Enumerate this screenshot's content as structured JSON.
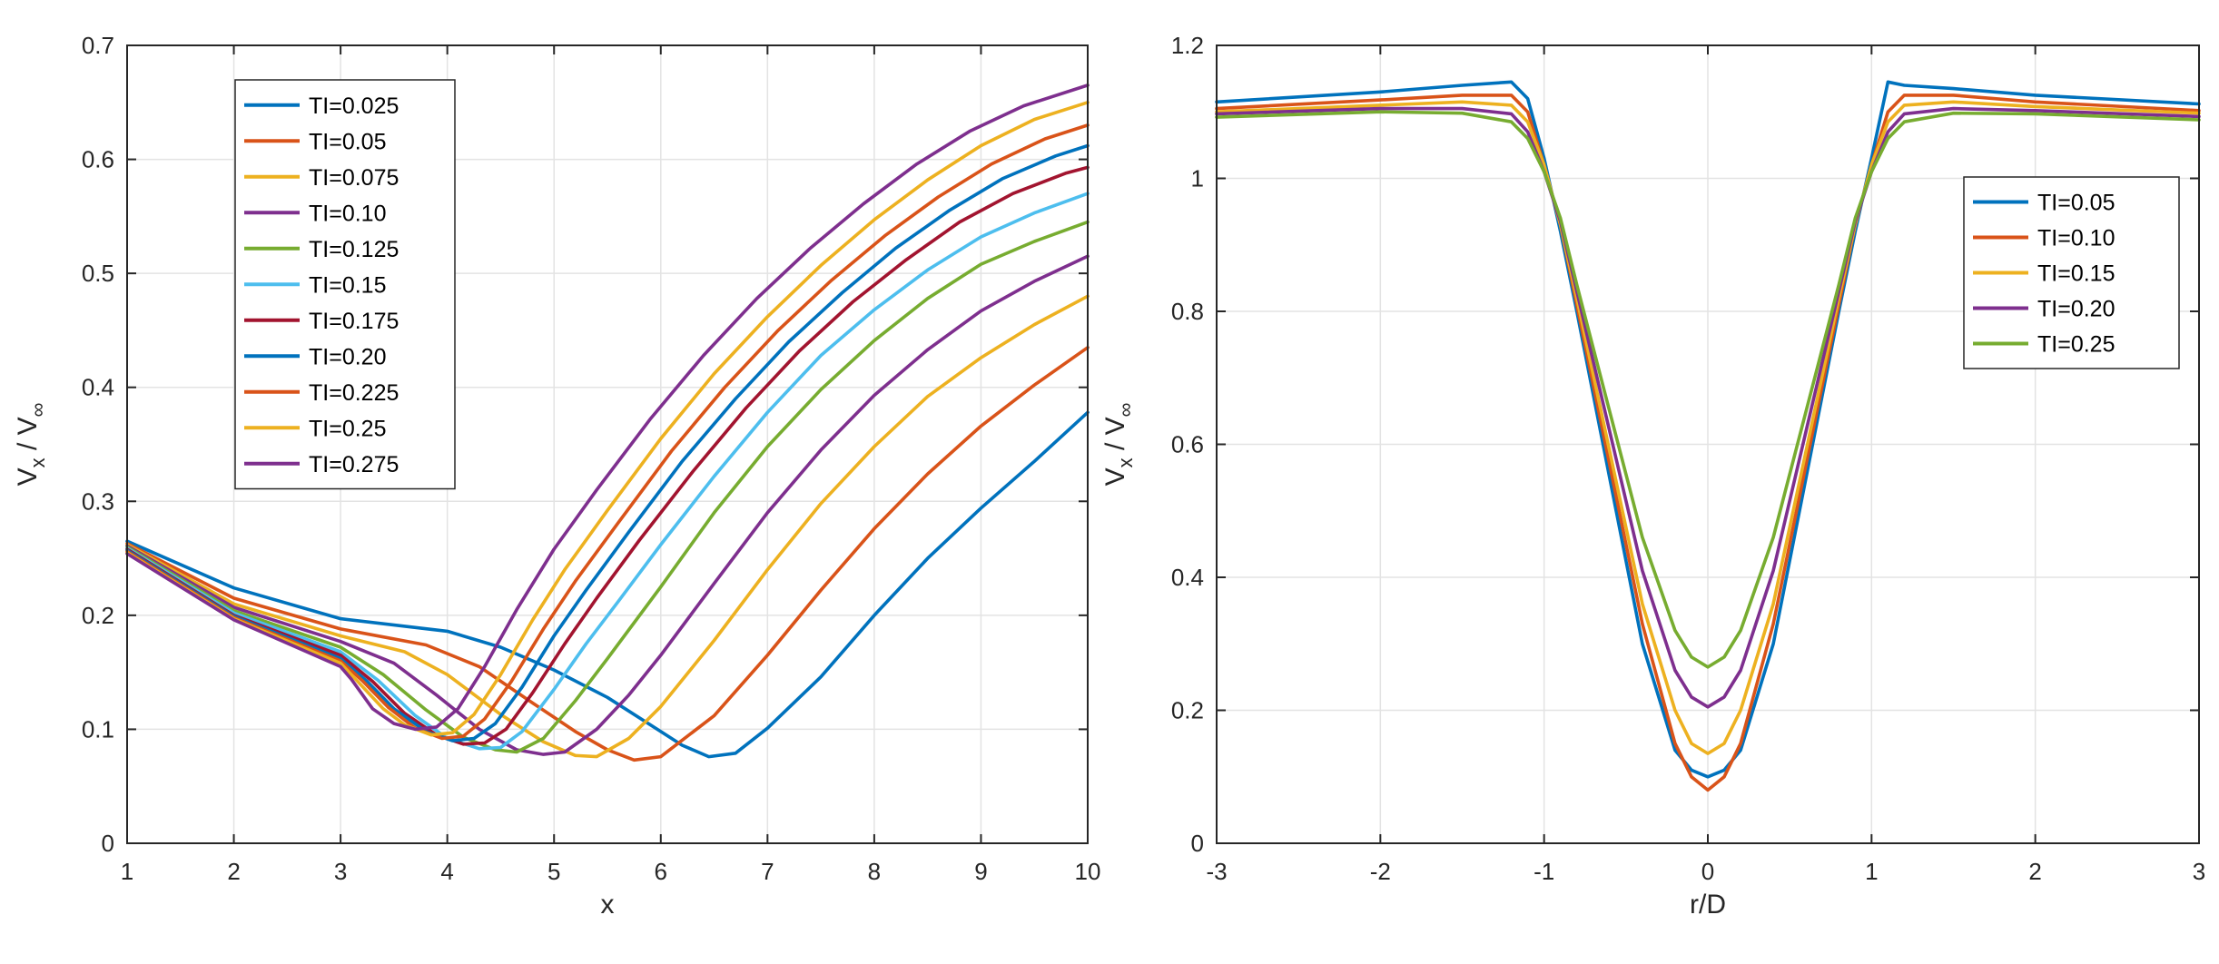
{
  "chart_data": [
    {
      "type": "line",
      "xlabel": "x",
      "ylabel": "V_x / V_∞",
      "ylabel_parts": [
        "V",
        "x",
        " / V",
        "∞"
      ],
      "xlim": [
        1,
        10
      ],
      "ylim": [
        0,
        0.7
      ],
      "xticks": [
        1,
        2,
        3,
        4,
        5,
        6,
        7,
        8,
        9,
        10
      ],
      "yticks": [
        0,
        0.1,
        0.2,
        0.3,
        0.4,
        0.5,
        0.6,
        0.7
      ],
      "xtick_labels": [
        "1",
        "2",
        "3",
        "4",
        "5",
        "6",
        "7",
        "8",
        "9",
        "10"
      ],
      "ytick_labels": [
        "0",
        "0.1",
        "0.2",
        "0.3",
        "0.4",
        "0.5",
        "0.6",
        "0.7"
      ],
      "grid": true,
      "legend_position": "top-left",
      "series": [
        {
          "name": "TI=0.025",
          "color": "#0072BD",
          "x": [
            1,
            2,
            3,
            4,
            4.5,
            5,
            5.5,
            6,
            6.2,
            6.45,
            6.7,
            7,
            7.5,
            8,
            8.5,
            9,
            9.5,
            10
          ],
          "y": [
            0.265,
            0.224,
            0.197,
            0.186,
            0.172,
            0.152,
            0.128,
            0.098,
            0.086,
            0.076,
            0.079,
            0.101,
            0.146,
            0.2,
            0.25,
            0.294,
            0.335,
            0.378
          ]
        },
        {
          "name": "TI=0.05",
          "color": "#D95319",
          "x": [
            1,
            2,
            3,
            3.8,
            4.3,
            4.8,
            5.2,
            5.5,
            5.75,
            6,
            6.5,
            7,
            7.5,
            8,
            8.5,
            9,
            9.5,
            10
          ],
          "y": [
            0.263,
            0.215,
            0.188,
            0.174,
            0.155,
            0.123,
            0.098,
            0.082,
            0.073,
            0.076,
            0.112,
            0.165,
            0.222,
            0.276,
            0.324,
            0.366,
            0.402,
            0.435
          ]
        },
        {
          "name": "TI=0.075",
          "color": "#EDB120",
          "x": [
            1,
            2,
            3,
            3.6,
            4,
            4.5,
            4.9,
            5.2,
            5.4,
            5.7,
            6,
            6.5,
            7,
            7.5,
            8,
            8.5,
            9,
            9.5,
            10
          ],
          "y": [
            0.262,
            0.21,
            0.182,
            0.168,
            0.148,
            0.113,
            0.089,
            0.077,
            0.076,
            0.092,
            0.12,
            0.178,
            0.24,
            0.298,
            0.348,
            0.392,
            0.426,
            0.455,
            0.48
          ]
        },
        {
          "name": "TI=0.10",
          "color": "#7E2F8E",
          "x": [
            1,
            2,
            3,
            3.5,
            3.9,
            4.3,
            4.65,
            4.9,
            5.1,
            5.4,
            5.7,
            6,
            6.5,
            7,
            7.5,
            8,
            8.5,
            9,
            9.5,
            10
          ],
          "y": [
            0.261,
            0.207,
            0.177,
            0.158,
            0.13,
            0.1,
            0.082,
            0.078,
            0.08,
            0.1,
            0.13,
            0.165,
            0.228,
            0.29,
            0.345,
            0.393,
            0.433,
            0.467,
            0.493,
            0.515
          ]
        },
        {
          "name": "TI=0.125",
          "color": "#77AC30",
          "x": [
            1,
            2,
            3,
            3.4,
            3.8,
            4.15,
            4.45,
            4.65,
            4.9,
            5.2,
            5.5,
            6,
            6.5,
            7,
            7.5,
            8,
            8.5,
            9,
            9.5,
            10
          ],
          "y": [
            0.26,
            0.204,
            0.172,
            0.148,
            0.117,
            0.093,
            0.082,
            0.08,
            0.092,
            0.125,
            0.162,
            0.225,
            0.29,
            0.348,
            0.398,
            0.441,
            0.478,
            0.508,
            0.528,
            0.545
          ]
        },
        {
          "name": "TI=0.15",
          "color": "#4DBEEE",
          "x": [
            1,
            2,
            3,
            3.35,
            3.7,
            4,
            4.3,
            4.5,
            4.7,
            5,
            5.3,
            5.6,
            6,
            6.5,
            7,
            7.5,
            8,
            8.5,
            9,
            9.5,
            10
          ],
          "y": [
            0.259,
            0.202,
            0.168,
            0.143,
            0.112,
            0.092,
            0.083,
            0.084,
            0.098,
            0.135,
            0.175,
            0.212,
            0.262,
            0.322,
            0.378,
            0.428,
            0.468,
            0.503,
            0.532,
            0.553,
            0.57
          ]
        },
        {
          "name": "TI=0.175",
          "color": "#A2142F",
          "x": [
            1,
            2,
            3,
            3.3,
            3.6,
            3.9,
            4.15,
            4.35,
            4.55,
            4.8,
            5.1,
            5.4,
            5.8,
            6.3,
            6.8,
            7.3,
            7.8,
            8.3,
            8.8,
            9.3,
            9.8,
            10
          ],
          "y": [
            0.258,
            0.2,
            0.165,
            0.142,
            0.114,
            0.095,
            0.087,
            0.088,
            0.1,
            0.132,
            0.175,
            0.215,
            0.266,
            0.326,
            0.382,
            0.432,
            0.475,
            0.512,
            0.545,
            0.57,
            0.588,
            0.593
          ]
        },
        {
          "name": "TI=0.20",
          "color": "#0072BD",
          "x": [
            1,
            2,
            3,
            3.25,
            3.5,
            3.8,
            4.05,
            4.25,
            4.45,
            4.7,
            5,
            5.3,
            5.7,
            6.2,
            6.7,
            7.2,
            7.7,
            8.2,
            8.7,
            9.2,
            9.7,
            10
          ],
          "y": [
            0.257,
            0.199,
            0.162,
            0.142,
            0.118,
            0.098,
            0.09,
            0.092,
            0.105,
            0.137,
            0.182,
            0.222,
            0.273,
            0.335,
            0.39,
            0.44,
            0.483,
            0.522,
            0.555,
            0.583,
            0.603,
            0.612
          ]
        },
        {
          "name": "TI=0.225",
          "color": "#D95319",
          "x": [
            1,
            2,
            3,
            3.2,
            3.45,
            3.7,
            3.95,
            4.15,
            4.35,
            4.6,
            4.9,
            5.2,
            5.6,
            6.1,
            6.6,
            7.1,
            7.6,
            8.1,
            8.6,
            9.1,
            9.6,
            10
          ],
          "y": [
            0.256,
            0.198,
            0.16,
            0.143,
            0.119,
            0.101,
            0.092,
            0.094,
            0.109,
            0.142,
            0.188,
            0.23,
            0.281,
            0.344,
            0.4,
            0.45,
            0.494,
            0.533,
            0.567,
            0.596,
            0.618,
            0.63
          ]
        },
        {
          "name": "TI=0.25",
          "color": "#EDB120",
          "x": [
            1,
            2,
            3,
            3.15,
            3.4,
            3.6,
            3.85,
            4.05,
            4.25,
            4.5,
            4.8,
            5.1,
            5.5,
            6,
            6.5,
            7,
            7.5,
            8,
            8.5,
            9,
            9.5,
            10
          ],
          "y": [
            0.255,
            0.197,
            0.158,
            0.143,
            0.118,
            0.104,
            0.095,
            0.097,
            0.113,
            0.148,
            0.196,
            0.24,
            0.292,
            0.355,
            0.412,
            0.462,
            0.507,
            0.547,
            0.582,
            0.612,
            0.635,
            0.65
          ]
        },
        {
          "name": "TI=0.275",
          "color": "#7E2F8E",
          "x": [
            1,
            2,
            3,
            3.1,
            3.3,
            3.5,
            3.7,
            3.9,
            4.1,
            4.35,
            4.65,
            5,
            5.4,
            5.9,
            6.4,
            6.9,
            7.4,
            7.9,
            8.4,
            8.9,
            9.4,
            10
          ],
          "y": [
            0.254,
            0.196,
            0.155,
            0.144,
            0.118,
            0.105,
            0.1,
            0.102,
            0.118,
            0.155,
            0.205,
            0.258,
            0.31,
            0.372,
            0.428,
            0.478,
            0.522,
            0.561,
            0.596,
            0.625,
            0.647,
            0.665
          ]
        }
      ]
    },
    {
      "type": "line",
      "xlabel": "r/D",
      "ylabel": "V_x / V_∞",
      "ylabel_parts": [
        "V",
        "x",
        " / V",
        "∞"
      ],
      "xlim": [
        -3,
        3
      ],
      "ylim": [
        0,
        1.2
      ],
      "xticks": [
        -3,
        -2,
        -1,
        0,
        1,
        2,
        3
      ],
      "yticks": [
        0,
        0.2,
        0.4,
        0.6,
        0.8,
        1,
        1.2
      ],
      "xtick_labels": [
        "-3",
        "-2",
        "-1",
        "0",
        "1",
        "2",
        "3"
      ],
      "ytick_labels": [
        "0",
        "0.2",
        "0.4",
        "0.6",
        "0.8",
        "1",
        "1.2"
      ],
      "grid": true,
      "legend_position": "top-right",
      "series": [
        {
          "name": "TI=0.05",
          "color": "#0072BD",
          "x": [
            -3,
            -2,
            -1.5,
            -1.2,
            -1.1,
            -1.0,
            -0.9,
            -0.8,
            -0.6,
            -0.4,
            -0.2,
            -0.1,
            0,
            0.1,
            0.2,
            0.4,
            0.6,
            0.8,
            0.9,
            1.0,
            1.1,
            1.2,
            1.5,
            2,
            3
          ],
          "y": [
            1.115,
            1.13,
            1.14,
            1.145,
            1.12,
            1.03,
            0.92,
            0.8,
            0.55,
            0.3,
            0.14,
            0.11,
            0.1,
            0.11,
            0.14,
            0.3,
            0.55,
            0.8,
            0.92,
            1.03,
            1.145,
            1.14,
            1.135,
            1.125,
            1.112
          ]
        },
        {
          "name": "TI=0.10",
          "color": "#D95319",
          "x": [
            -3,
            -2,
            -1.5,
            -1.2,
            -1.1,
            -1.0,
            -0.9,
            -0.8,
            -0.6,
            -0.4,
            -0.2,
            -0.1,
            0,
            0.1,
            0.2,
            0.4,
            0.6,
            0.8,
            0.9,
            1.0,
            1.1,
            1.2,
            1.5,
            2,
            3
          ],
          "y": [
            1.105,
            1.118,
            1.125,
            1.125,
            1.1,
            1.02,
            0.93,
            0.81,
            0.57,
            0.33,
            0.15,
            0.1,
            0.08,
            0.1,
            0.15,
            0.33,
            0.57,
            0.81,
            0.93,
            1.02,
            1.1,
            1.125,
            1.125,
            1.115,
            1.102
          ]
        },
        {
          "name": "TI=0.15",
          "color": "#EDB120",
          "x": [
            -3,
            -2,
            -1.5,
            -1.2,
            -1.1,
            -1.0,
            -0.9,
            -0.8,
            -0.6,
            -0.4,
            -0.2,
            -0.1,
            0,
            0.1,
            0.2,
            0.4,
            0.6,
            0.8,
            0.9,
            1.0,
            1.1,
            1.2,
            1.5,
            2,
            3
          ],
          "y": [
            1.1,
            1.11,
            1.115,
            1.11,
            1.085,
            1.02,
            0.93,
            0.82,
            0.59,
            0.36,
            0.2,
            0.15,
            0.135,
            0.15,
            0.2,
            0.36,
            0.59,
            0.82,
            0.93,
            1.02,
            1.085,
            1.11,
            1.115,
            1.108,
            1.098
          ]
        },
        {
          "name": "TI=0.20",
          "color": "#7E2F8E",
          "x": [
            -3,
            -2,
            -1.5,
            -1.2,
            -1.1,
            -1.0,
            -0.9,
            -0.8,
            -0.6,
            -0.4,
            -0.2,
            -0.1,
            0,
            0.1,
            0.2,
            0.4,
            0.6,
            0.8,
            0.9,
            1.0,
            1.1,
            1.2,
            1.5,
            2,
            3
          ],
          "y": [
            1.097,
            1.105,
            1.105,
            1.097,
            1.07,
            1.01,
            0.935,
            0.83,
            0.62,
            0.41,
            0.26,
            0.22,
            0.205,
            0.22,
            0.26,
            0.41,
            0.62,
            0.83,
            0.935,
            1.01,
            1.07,
            1.097,
            1.105,
            1.102,
            1.093
          ]
        },
        {
          "name": "TI=0.25",
          "color": "#77AC30",
          "x": [
            -3,
            -2,
            -1.5,
            -1.2,
            -1.1,
            -1.0,
            -0.9,
            -0.8,
            -0.6,
            -0.4,
            -0.2,
            -0.1,
            0,
            0.1,
            0.2,
            0.4,
            0.6,
            0.8,
            0.9,
            1.0,
            1.1,
            1.2,
            1.5,
            2,
            3
          ],
          "y": [
            1.092,
            1.1,
            1.098,
            1.085,
            1.06,
            1.01,
            0.94,
            0.84,
            0.65,
            0.46,
            0.32,
            0.28,
            0.265,
            0.28,
            0.32,
            0.46,
            0.65,
            0.84,
            0.94,
            1.01,
            1.06,
            1.085,
            1.098,
            1.097,
            1.088
          ]
        }
      ]
    }
  ]
}
